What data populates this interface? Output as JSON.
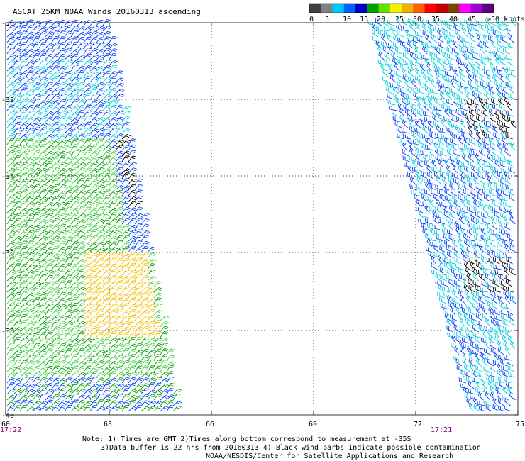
{
  "title": "ASCAT 25KM NOAA Winds 20160313 ascending",
  "legend": {
    "labels": [
      "0",
      "5",
      "10",
      "15",
      "20",
      "25",
      "30",
      "35",
      "40",
      "45",
      ">50 knots"
    ],
    "colors": [
      "#404040",
      "#808080",
      "#00c8ff",
      "#0060ff",
      "#0000c0",
      "#00a000",
      "#60e000",
      "#f0f000",
      "#f0b000",
      "#ff6000",
      "#ff0000",
      "#c00000",
      "#804000",
      "#ff00ff",
      "#a000d0",
      "#600080"
    ]
  },
  "axes": {
    "lat_labels": [
      "-30",
      "-32",
      "-34",
      "-36",
      "-38",
      "-40"
    ],
    "lon_labels": [
      "60",
      "63",
      "66",
      "69",
      "72",
      "75"
    ]
  },
  "pass_times": {
    "left": "17:22",
    "right": "17:21"
  },
  "notes": {
    "line1": "Note: 1) Times are GMT 2)Times along bottom correspond to measurement at -35S",
    "line2": "3)Data buffer is 22 hrs from 20160313 4) Black wind barbs indicate possible contamination",
    "line3": "NOAA/NESDIS/Center for Satellite Applications and Research"
  },
  "barb_colors": {
    "calm": "#000000",
    "light": "#00d0e0",
    "moderate": "#0040ff",
    "strong": "#00a000",
    "fresh": "#40d040",
    "gale": "#f0c000"
  }
}
